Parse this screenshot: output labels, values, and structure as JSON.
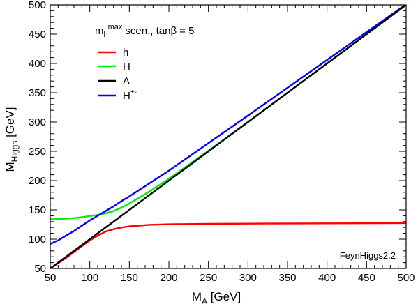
{
  "chart_data": {
    "type": "line",
    "title": "",
    "scenario_label": {
      "base": "m",
      "sub": "h",
      "sup": "max",
      "rest": "scen., tanβ = 5"
    },
    "xlabel": {
      "base": "M",
      "sub": "A",
      "rest": " [GeV]"
    },
    "ylabel": {
      "base": "M",
      "sub": "Higgs",
      "rest": " [GeV]"
    },
    "xlim": [
      50,
      500
    ],
    "ylim": [
      50,
      500
    ],
    "xticks": [
      50,
      100,
      150,
      200,
      250,
      300,
      350,
      400,
      450,
      500
    ],
    "yticks": [
      50,
      100,
      150,
      200,
      250,
      300,
      350,
      400,
      450,
      500
    ],
    "annotation": "FeynHiggs2.2",
    "grid": false,
    "legend_position": "top-left",
    "series": [
      {
        "name": "h",
        "color": "#ff0000",
        "x": [
          50,
          60,
          70,
          80,
          90,
          100,
          110,
          120,
          130,
          140,
          150,
          175,
          200,
          250,
          300,
          400,
          500
        ],
        "y": [
          50,
          59,
          68,
          78,
          88,
          98,
          106,
          113,
          117,
          120,
          122,
          124.5,
          125.5,
          126.2,
          126.6,
          127,
          127.5
        ]
      },
      {
        "name": "H",
        "color": "#00ee00",
        "x": [
          50,
          60,
          70,
          80,
          90,
          100,
          110,
          120,
          130,
          140,
          150,
          175,
          200,
          250,
          300,
          400,
          500
        ],
        "y": [
          134,
          134.5,
          135,
          136,
          137.5,
          139.5,
          141.5,
          144,
          148,
          154,
          161,
          181,
          203,
          251,
          300,
          400,
          500
        ]
      },
      {
        "name": "A",
        "color": "#000000",
        "x": [
          50,
          500
        ],
        "y": [
          50,
          500
        ]
      },
      {
        "name": "H+-",
        "display": {
          "base": "H",
          "sup": "+-"
        },
        "color": "#0000ff",
        "x": [
          50,
          60,
          70,
          80,
          90,
          100,
          110,
          120,
          130,
          140,
          150,
          175,
          200,
          250,
          300,
          400,
          500
        ],
        "y": [
          92,
          98,
          106,
          114,
          123,
          132,
          140,
          148,
          156,
          165,
          173,
          195,
          217,
          264,
          311,
          406,
          501
        ]
      }
    ]
  }
}
